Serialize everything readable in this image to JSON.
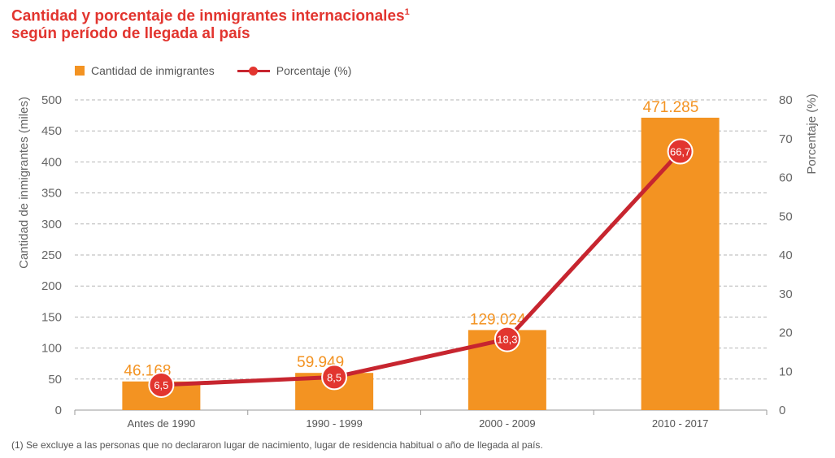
{
  "title": {
    "line1": "Cantidad y porcentaje de inmigrantes internacionales",
    "sup": "1",
    "line2": "según período de llegada al país"
  },
  "legend": {
    "bar_label": "Cantidad de inmigrantes",
    "line_label": "Porcentaje (%)"
  },
  "footnote": "(1) Se excluye a las personas que no declararon lugar de nacimiento, lugar de residencia habitual o año de llegada al país.",
  "colors": {
    "bar": "#f39322",
    "line": "#c7252f",
    "marker": "#e2352f",
    "title": "#e2352f",
    "axis_text": "#666666"
  },
  "chart_data": {
    "type": "bar",
    "categories": [
      "Antes de 1990",
      "1990 - 1999",
      "2000 - 2009",
      "2010 - 2017"
    ],
    "series": [
      {
        "name": "Cantidad de inmigrantes",
        "type": "bar",
        "axis": "left",
        "values": [
          46.168,
          59.949,
          129.024,
          471.285
        ],
        "labels": [
          "46.168",
          "59.949",
          "129.024",
          "471.285"
        ]
      },
      {
        "name": "Porcentaje (%)",
        "type": "line",
        "axis": "right",
        "values": [
          6.5,
          8.5,
          18.3,
          66.7
        ],
        "labels": [
          "6,5",
          "8,5",
          "18,3",
          "66,7"
        ]
      }
    ],
    "ylabel": "Cantidad de inmigrantes (miles)",
    "ylabel_right": "Porcentaje (%)",
    "ylim": [
      0,
      500
    ],
    "ylim_right": [
      0,
      80
    ],
    "yticks": [
      0,
      50,
      100,
      150,
      200,
      250,
      300,
      350,
      400,
      450,
      500
    ],
    "yticks_right": [
      0,
      10,
      20,
      30,
      40,
      50,
      60,
      70,
      80
    ],
    "grid": true,
    "legend_position": "top-left"
  }
}
